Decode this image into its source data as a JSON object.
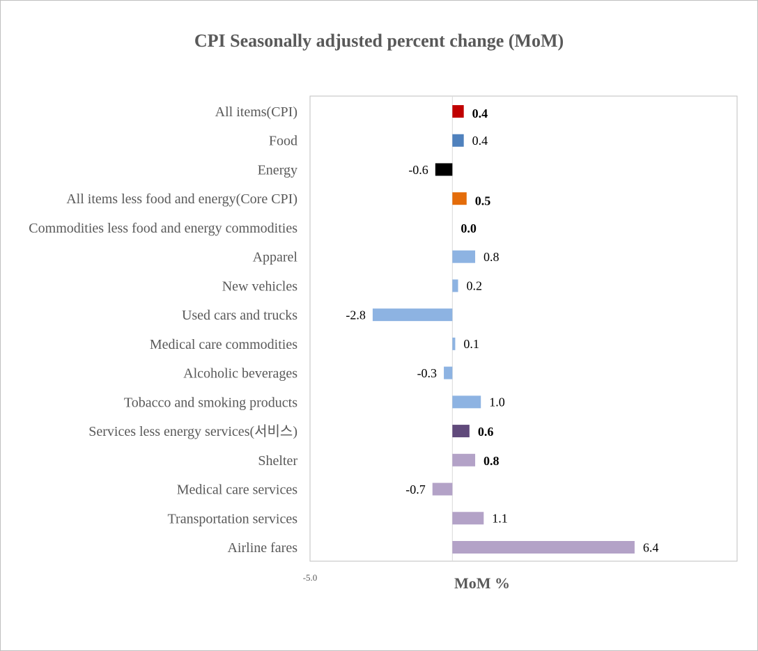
{
  "chart_data": {
    "type": "bar",
    "orientation": "horizontal",
    "title": "CPI Seasonally adjusted percent change (MoM)",
    "xlabel": "MoM %",
    "ylabel": "",
    "xlim": [
      -5.0,
      10.0
    ],
    "x_tick_labels": [
      "-5.0"
    ],
    "grid": false,
    "categories": [
      "All items(CPI)",
      "Food",
      "Energy",
      "All items less food and energy(Core CPI)",
      "Commodities less food and energy commodities",
      "Apparel",
      "New vehicles",
      "Used cars and trucks",
      "Medical care commodities",
      "Alcoholic beverages",
      "Tobacco and smoking products",
      "Services less energy services(서비스)",
      "Shelter",
      "Medical care services",
      "Transportation services",
      "Airline fares"
    ],
    "values": [
      0.4,
      0.4,
      -0.6,
      0.5,
      0.0,
      0.8,
      0.2,
      -2.8,
      0.1,
      -0.3,
      1.0,
      0.6,
      0.8,
      -0.7,
      1.1,
      6.4
    ],
    "data_labels": [
      "0.4",
      "0.4",
      "-0.6",
      "0.5",
      "0.0",
      "0.8",
      "0.2",
      "-2.8",
      "0.1",
      "-0.3",
      "1.0",
      "0.6",
      "0.8",
      "-0.7",
      "1.1",
      "6.4"
    ],
    "colors": [
      "#c00000",
      "#4f81bd",
      "#000000",
      "#e46c0a",
      "#8db3e2",
      "#8db3e2",
      "#8db3e2",
      "#8db3e2",
      "#8db3e2",
      "#8db3e2",
      "#8db3e2",
      "#604a7b",
      "#b3a2c7",
      "#b3a2c7",
      "#b3a2c7",
      "#b3a2c7"
    ],
    "label_styles": [
      "large-bold",
      "normal",
      "normal",
      "large-bold",
      "bold",
      "normal",
      "normal",
      "normal",
      "normal",
      "normal",
      "normal",
      "bold",
      "bold",
      "normal",
      "normal",
      "normal"
    ]
  }
}
